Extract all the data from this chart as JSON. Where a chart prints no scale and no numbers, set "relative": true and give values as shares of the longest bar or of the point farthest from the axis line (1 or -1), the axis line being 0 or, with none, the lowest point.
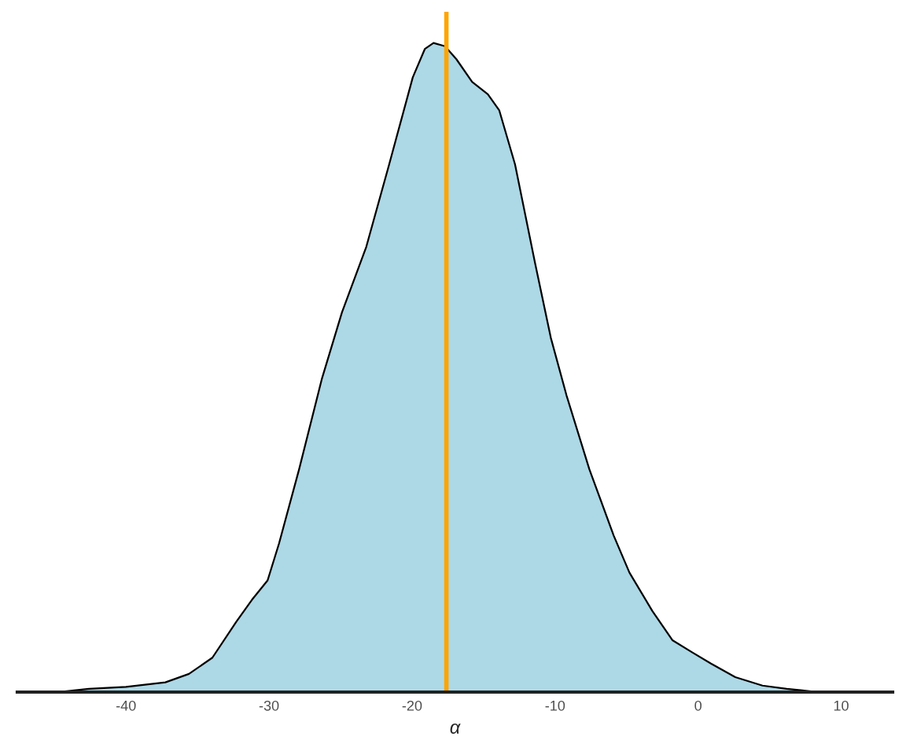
{
  "chart_data": {
    "type": "area",
    "relative": true,
    "xlabel": "α",
    "x": [
      -44.8,
      -42.6,
      -40,
      -37.25,
      -35.6,
      -33.96,
      -32.3,
      -31.2,
      -30.1,
      -29.3,
      -27.9,
      -26.3,
      -24.9,
      -23.2,
      -21.6,
      -19.95,
      -19.1,
      -18.5,
      -17.7,
      -16.9,
      -15.8,
      -14.7,
      -13.9,
      -12.8,
      -11.4,
      -10.3,
      -9.2,
      -7.6,
      -5.9,
      -4.8,
      -3.2,
      -1.8,
      -0.4,
      0.9,
      2.6,
      4.5,
      6.2,
      8.4,
      10.8
    ],
    "series": [
      {
        "color": "#add8e6",
        "values": [
          0,
          0.005,
          0.008,
          0.015,
          0.028,
          0.053,
          0.108,
          0.142,
          0.172,
          0.229,
          0.343,
          0.483,
          0.585,
          0.686,
          0.813,
          0.947,
          0.991,
          1.0,
          0.995,
          0.975,
          0.94,
          0.921,
          0.896,
          0.813,
          0.661,
          0.546,
          0.457,
          0.343,
          0.241,
          0.184,
          0.125,
          0.08,
          0.061,
          0.044,
          0.023,
          0.01,
          0.005,
          0,
          0.001
        ]
      }
    ],
    "xlim": [
      -47.6,
      13.6
    ],
    "xticks": [
      -40,
      -30,
      -20,
      -10,
      0,
      10
    ],
    "ref_lines": [
      {
        "axis": "x",
        "value": -17.6,
        "color": "#ffa500"
      }
    ],
    "grid": false,
    "legend": false
  }
}
